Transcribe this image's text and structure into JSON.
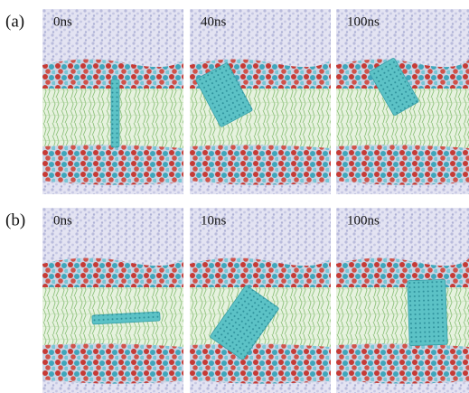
{
  "rows": [
    {
      "label": "(a)",
      "panels": [
        "0ns",
        "40ns",
        "100ns"
      ]
    },
    {
      "label": "(b)",
      "panels": [
        "0ns",
        "10ns",
        "100ns"
      ]
    }
  ]
}
